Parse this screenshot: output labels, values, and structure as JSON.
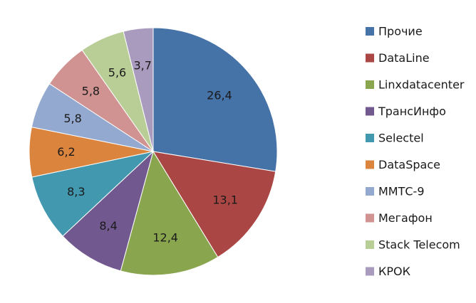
{
  "chart_data": {
    "type": "pie",
    "title": "",
    "categories": [
      "Прочие",
      "DataLine",
      "Linxdatacenter",
      "ТрансИнфо",
      "Selectel",
      "DataSpace",
      "ММТС-9",
      "Мегафон",
      "Stack Telecom",
      "КРОК"
    ],
    "values": [
      26.4,
      13.1,
      12.4,
      8.4,
      8.3,
      6.2,
      5.8,
      5.8,
      5.6,
      3.7
    ],
    "data_labels": [
      "26,4",
      "13,1",
      "12,4",
      "8,4",
      "8,3",
      "6,2",
      "5,8",
      "5,8",
      "5,6",
      "3,7"
    ],
    "colors": [
      "#4572A7",
      "#AA4643",
      "#89A54E",
      "#71588F",
      "#4198AF",
      "#DB843D",
      "#93A9CF",
      "#D19392",
      "#B9CD96",
      "#A99BBD"
    ],
    "start_angle": "12 o'clock",
    "direction": "clockwise",
    "legend": {
      "position": "right"
    }
  }
}
